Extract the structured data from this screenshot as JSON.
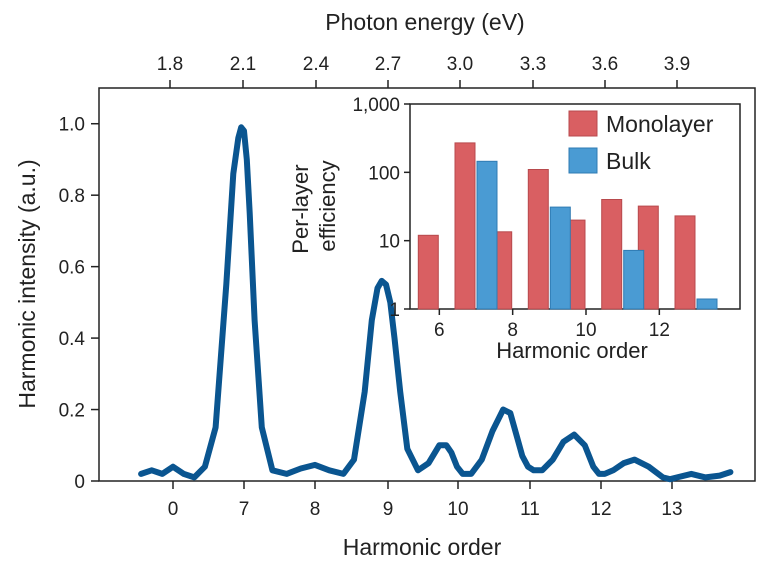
{
  "chart_data": [
    {
      "type": "line",
      "title": "",
      "xlabel": "Harmonic order",
      "ylabel": "Harmonic intensity (a.u.)",
      "x2label": "Photon energy (eV)",
      "x_tick_labels": [
        "0",
        "7",
        "8",
        "9",
        "10",
        "11",
        "12",
        "13"
      ],
      "x2_tick_labels": [
        "1.8",
        "2.1",
        "2.4",
        "2.7",
        "3.0",
        "3.3",
        "3.6",
        "3.9"
      ],
      "y_tick_labels": [
        "0",
        "0.2",
        "0.4",
        "0.6",
        "0.8",
        "1.0"
      ],
      "ylim": [
        0,
        1.1
      ],
      "grid": false,
      "line_color": "#0a5590",
      "series": [
        {
          "x": [
            -0.45,
            -0.3,
            -0.15,
            0.0,
            0.15,
            0.3,
            0.45,
            0.6,
            0.75,
            0.85,
            0.92,
            0.96,
            1.0,
            1.04,
            1.08,
            1.15,
            1.25,
            1.4,
            1.6,
            1.8,
            2.0,
            2.2,
            2.4,
            2.55,
            2.7,
            2.8,
            2.88,
            2.94,
            3.0,
            3.06,
            3.12,
            3.2,
            3.3,
            3.45,
            3.6,
            3.75,
            3.85,
            3.92,
            4.0,
            4.08,
            4.2,
            4.35,
            4.5,
            4.65,
            4.75,
            4.85,
            4.92,
            5.0,
            5.08,
            5.2,
            5.35,
            5.5,
            5.65,
            5.8,
            5.92,
            6.0,
            6.08,
            6.2,
            6.35,
            6.5,
            6.7,
            6.9,
            7.0,
            7.1,
            7.3,
            7.5,
            7.7,
            7.85
          ],
          "y": [
            0.02,
            0.03,
            0.02,
            0.04,
            0.02,
            0.01,
            0.04,
            0.15,
            0.55,
            0.86,
            0.96,
            0.99,
            0.98,
            0.9,
            0.75,
            0.45,
            0.15,
            0.03,
            0.02,
            0.035,
            0.045,
            0.03,
            0.02,
            0.06,
            0.25,
            0.45,
            0.54,
            0.56,
            0.55,
            0.5,
            0.4,
            0.25,
            0.09,
            0.03,
            0.05,
            0.1,
            0.1,
            0.08,
            0.04,
            0.02,
            0.02,
            0.06,
            0.14,
            0.2,
            0.19,
            0.12,
            0.07,
            0.04,
            0.03,
            0.03,
            0.06,
            0.11,
            0.13,
            0.1,
            0.04,
            0.02,
            0.02,
            0.03,
            0.05,
            0.06,
            0.04,
            0.01,
            0.005,
            0.01,
            0.02,
            0.01,
            0.015,
            0.025
          ]
        }
      ]
    },
    {
      "type": "bar",
      "title": "",
      "xlabel": "Harmonic order",
      "ylabel_line1": "Per-layer",
      "ylabel_line2": "efficiency",
      "y_scale": "log",
      "ylim": [
        1,
        1000
      ],
      "xlim": [
        5.2,
        14.2
      ],
      "x_tick_labels": [
        "6",
        "8",
        "10",
        "12"
      ],
      "y_tick_labels": [
        "1",
        "10",
        "100",
        "1,000"
      ],
      "legend_position": "top-right",
      "series": [
        {
          "name": "Monolayer",
          "color": "#d95f62",
          "x": [
            6,
            7,
            8,
            9,
            10,
            11,
            12,
            13
          ],
          "values": [
            12,
            270,
            13.5,
            110,
            20,
            40,
            32,
            23
          ]
        },
        {
          "name": "Bulk",
          "color": "#4a9bd3",
          "x": [
            7,
            9,
            11,
            13
          ],
          "values": [
            145,
            31,
            7.2,
            1.4
          ]
        }
      ]
    }
  ]
}
